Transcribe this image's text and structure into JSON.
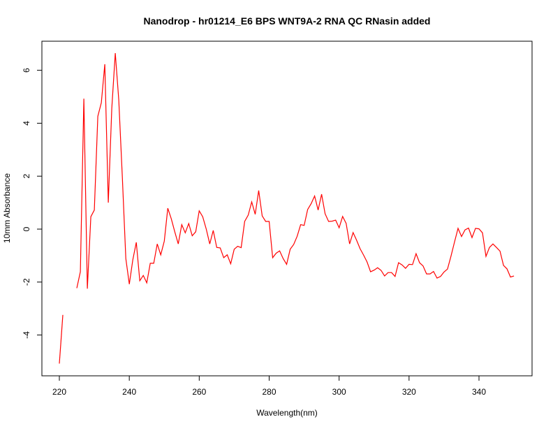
{
  "chart_data": {
    "type": "line",
    "title": "Nanodrop - hr01214_E6 BPS WNT9A-2 RNA QC RNasin added",
    "xlabel": "Wavelength(nm)",
    "ylabel": "10mm Absorbance",
    "xlim": [
      220,
      350
    ],
    "ylim": [
      -5.2,
      7.0
    ],
    "xticks": [
      220,
      240,
      260,
      280,
      300,
      320,
      340
    ],
    "yticks": [
      -4,
      -2,
      0,
      2,
      4,
      6
    ],
    "grid": false,
    "series": [
      {
        "name": "absorbance",
        "color": "#ff0000",
        "x": [
          220,
          221,
          222,
          223,
          224,
          225,
          226,
          227,
          228,
          229,
          230,
          231,
          232,
          233,
          234,
          235,
          236,
          237,
          238,
          239,
          240,
          241,
          242,
          243,
          244,
          245,
          246,
          247,
          248,
          249,
          250,
          251,
          252,
          253,
          254,
          255,
          256,
          257,
          258,
          259,
          260,
          261,
          262,
          263,
          264,
          265,
          266,
          267,
          268,
          269,
          270,
          271,
          272,
          273,
          274,
          275,
          276,
          277,
          278,
          279,
          280,
          281,
          282,
          283,
          284,
          285,
          286,
          287,
          288,
          289,
          290,
          291,
          292,
          293,
          294,
          295,
          296,
          297,
          298,
          299,
          300,
          301,
          302,
          303,
          304,
          305,
          306,
          307,
          308,
          309,
          310,
          311,
          312,
          313,
          314,
          315,
          316,
          317,
          318,
          319,
          320,
          321,
          322,
          323,
          324,
          325,
          326,
          327,
          328,
          329,
          330,
          331,
          332,
          333,
          334,
          335,
          336,
          337,
          338,
          339,
          340,
          341,
          342,
          343,
          344,
          345,
          346,
          347,
          348,
          349,
          350
        ],
        "y": [
          -5.08,
          -3.24,
          null,
          null,
          null,
          -2.23,
          -1.61,
          4.93,
          -2.25,
          0.47,
          0.72,
          4.26,
          4.77,
          6.23,
          1.0,
          4.56,
          6.65,
          4.88,
          1.97,
          -1.11,
          -2.08,
          -1.16,
          -0.5,
          -1.95,
          -1.75,
          -2.03,
          -1.29,
          -1.29,
          -0.56,
          -0.97,
          -0.45,
          0.79,
          0.39,
          -0.1,
          -0.56,
          0.17,
          -0.14,
          0.21,
          -0.25,
          -0.1,
          0.69,
          0.47,
          0.0,
          -0.56,
          -0.05,
          -0.69,
          -0.71,
          -1.08,
          -0.97,
          -1.31,
          -0.76,
          -0.65,
          -0.7,
          0.29,
          0.53,
          1.03,
          0.56,
          1.46,
          0.5,
          0.29,
          0.29,
          -1.08,
          -0.91,
          -0.82,
          -1.11,
          -1.33,
          -0.76,
          -0.58,
          -0.27,
          0.17,
          0.14,
          0.74,
          0.96,
          1.25,
          0.72,
          1.32,
          0.58,
          0.29,
          0.3,
          0.34,
          0.05,
          0.48,
          0.22,
          -0.56,
          -0.13,
          -0.42,
          -0.74,
          -0.98,
          -1.24,
          -1.61,
          -1.55,
          -1.46,
          -1.56,
          -1.77,
          -1.64,
          -1.64,
          -1.79,
          -1.27,
          -1.35,
          -1.48,
          -1.33,
          -1.34,
          -0.93,
          -1.27,
          -1.39,
          -1.69,
          -1.69,
          -1.6,
          -1.85,
          -1.79,
          -1.62,
          -1.51,
          -1.02,
          -0.49,
          0.03,
          -0.28,
          -0.03,
          0.04,
          -0.32,
          0.03,
          0.01,
          -0.14,
          -1.03,
          -0.69,
          -0.56,
          -0.69,
          -0.83,
          -1.37,
          -1.5,
          -1.81,
          -1.77
        ]
      }
    ]
  }
}
